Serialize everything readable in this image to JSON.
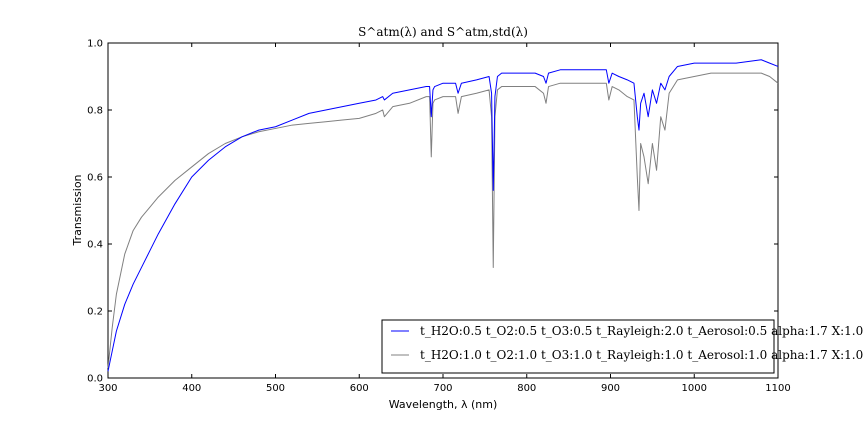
{
  "chart_data": {
    "type": "line",
    "title": "S^atm(λ) and S^atm,std(λ)",
    "xlabel": "Wavelength, λ (nm)",
    "ylabel": "Transmission",
    "xlim": [
      300,
      1100
    ],
    "ylim": [
      0.0,
      1.0
    ],
    "xticks": [
      "300",
      "400",
      "500",
      "600",
      "700",
      "800",
      "900",
      "1000",
      "1100"
    ],
    "yticks": [
      "0.0",
      "0.2",
      "0.4",
      "0.6",
      "0.8",
      "1.0"
    ],
    "grid": false,
    "legend_position": "lower-right",
    "series": [
      {
        "name": "t_H2O:0.5 t_O2:0.5 t_O3:0.5 t_Rayleigh:2.0 t_Aerosol:0.5 alpha:1.7 X:1.0",
        "color": "#0000ff",
        "x": [
          300,
          305,
          310,
          320,
          330,
          340,
          350,
          360,
          380,
          400,
          420,
          440,
          460,
          480,
          500,
          520,
          540,
          560,
          580,
          600,
          620,
          628,
          630,
          640,
          660,
          680,
          684,
          686,
          688,
          690,
          700,
          715,
          718,
          722,
          740,
          755,
          758,
          760,
          762,
          765,
          770,
          790,
          810,
          820,
          823,
          826,
          840,
          880,
          895,
          898,
          902,
          910,
          920,
          928,
          932,
          934,
          936,
          940,
          945,
          950,
          955,
          960,
          965,
          970,
          980,
          1000,
          1020,
          1050,
          1080,
          1090,
          1100
        ],
        "y": [
          0.02,
          0.08,
          0.14,
          0.22,
          0.28,
          0.33,
          0.38,
          0.43,
          0.52,
          0.6,
          0.65,
          0.69,
          0.72,
          0.74,
          0.75,
          0.77,
          0.79,
          0.8,
          0.81,
          0.82,
          0.83,
          0.84,
          0.83,
          0.85,
          0.86,
          0.87,
          0.87,
          0.78,
          0.86,
          0.87,
          0.88,
          0.88,
          0.85,
          0.88,
          0.89,
          0.9,
          0.85,
          0.56,
          0.84,
          0.9,
          0.91,
          0.91,
          0.91,
          0.9,
          0.88,
          0.91,
          0.92,
          0.92,
          0.92,
          0.88,
          0.91,
          0.9,
          0.89,
          0.88,
          0.78,
          0.74,
          0.82,
          0.85,
          0.78,
          0.86,
          0.82,
          0.88,
          0.86,
          0.9,
          0.93,
          0.94,
          0.94,
          0.94,
          0.95,
          0.94,
          0.93
        ]
      },
      {
        "name": "t_H2O:1.0 t_O2:1.0 t_O3:1.0 t_Rayleigh:1.0 t_Aerosol:1.0 alpha:1.7 X:1.0",
        "color": "#808080",
        "x": [
          300,
          305,
          310,
          320,
          330,
          340,
          350,
          360,
          380,
          400,
          420,
          440,
          460,
          480,
          500,
          520,
          540,
          560,
          580,
          600,
          620,
          628,
          630,
          640,
          660,
          680,
          684,
          686,
          688,
          690,
          700,
          715,
          718,
          722,
          740,
          755,
          758,
          760,
          762,
          765,
          770,
          790,
          810,
          820,
          823,
          826,
          840,
          880,
          895,
          898,
          902,
          910,
          920,
          928,
          932,
          934,
          936,
          940,
          945,
          950,
          955,
          960,
          965,
          970,
          980,
          1000,
          1020,
          1050,
          1080,
          1090,
          1100
        ],
        "y": [
          0.03,
          0.15,
          0.25,
          0.37,
          0.44,
          0.48,
          0.51,
          0.54,
          0.59,
          0.63,
          0.67,
          0.7,
          0.72,
          0.735,
          0.745,
          0.755,
          0.76,
          0.765,
          0.77,
          0.775,
          0.79,
          0.8,
          0.78,
          0.81,
          0.82,
          0.84,
          0.84,
          0.66,
          0.82,
          0.83,
          0.84,
          0.84,
          0.79,
          0.84,
          0.85,
          0.86,
          0.78,
          0.33,
          0.78,
          0.86,
          0.87,
          0.87,
          0.87,
          0.85,
          0.82,
          0.87,
          0.88,
          0.88,
          0.88,
          0.83,
          0.87,
          0.86,
          0.84,
          0.83,
          0.6,
          0.5,
          0.7,
          0.66,
          0.58,
          0.7,
          0.62,
          0.78,
          0.74,
          0.85,
          0.89,
          0.9,
          0.91,
          0.91,
          0.91,
          0.9,
          0.88
        ]
      }
    ],
    "legend": [
      "t_H2O:0.5 t_O2:0.5 t_O3:0.5 t_Rayleigh:2.0 t_Aerosol:0.5 alpha:1.7 X:1.0",
      "t_H2O:1.0 t_O2:1.0 t_O3:1.0 t_Rayleigh:1.0 t_Aerosol:1.0 alpha:1.7 X:1.0"
    ]
  }
}
